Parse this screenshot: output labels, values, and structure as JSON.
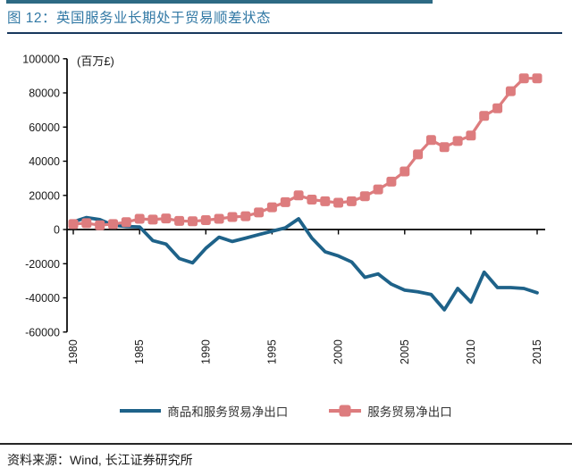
{
  "page": {
    "title": "图 12：英国服务业长期处于贸易顺差状态",
    "source": "资料来源：Wind, 长江证券研究所"
  },
  "chart_data": {
    "type": "line",
    "title": "图 12：英国服务业长期处于贸易顺差状态",
    "unit_label": "(百万£)",
    "x": [
      1980,
      1981,
      1982,
      1983,
      1984,
      1985,
      1986,
      1987,
      1988,
      1989,
      1990,
      1991,
      1992,
      1993,
      1994,
      1995,
      1996,
      1997,
      1998,
      1999,
      2000,
      2001,
      2002,
      2003,
      2004,
      2005,
      2006,
      2007,
      2008,
      2009,
      2010,
      2011,
      2012,
      2013,
      2014,
      2015
    ],
    "series": [
      {
        "name": "商品和服务贸易净出口",
        "color": "#1E6289",
        "marker": "none",
        "values": [
          4500,
          7000,
          5800,
          2500,
          1800,
          1500,
          -6500,
          -8500,
          -17000,
          -19500,
          -11000,
          -4500,
          -7000,
          -5000,
          -3000,
          -1000,
          1000,
          6300,
          -5000,
          -13000,
          -15500,
          -19000,
          -28000,
          -26000,
          -32000,
          -35500,
          -36500,
          -38000,
          -47000,
          -34500,
          -42500,
          -25000,
          -34000,
          -34000,
          -34500,
          -37000
        ]
      },
      {
        "name": "服务贸易净出口",
        "color": "#DD7C7E",
        "marker": "square",
        "values": [
          3200,
          3700,
          2500,
          3200,
          4300,
          6300,
          5800,
          6500,
          5000,
          4800,
          5500,
          6300,
          7300,
          7800,
          10000,
          13000,
          16000,
          20000,
          17500,
          16500,
          15700,
          16500,
          19500,
          23500,
          28000,
          34000,
          44000,
          52400,
          48200,
          51800,
          55000,
          66500,
          71000,
          81000,
          88500,
          88500
        ]
      }
    ],
    "ylim": [
      -60000,
      100000
    ],
    "yticks": [
      100000,
      80000,
      60000,
      40000,
      20000,
      0,
      -20000,
      -40000,
      -60000
    ],
    "xticks": [
      1980,
      1985,
      1990,
      1995,
      2000,
      2005,
      2010,
      2015
    ],
    "grid": false,
    "legend_position": "bottom"
  },
  "colors": {
    "accent_bar": "#2D6A84",
    "title_text": "#3279A5",
    "title_rule": "#17375D",
    "axis": "#000000",
    "goods_services_line": "#1E6289",
    "services_line": "#DD7C7E",
    "source_rule": "#262626"
  }
}
